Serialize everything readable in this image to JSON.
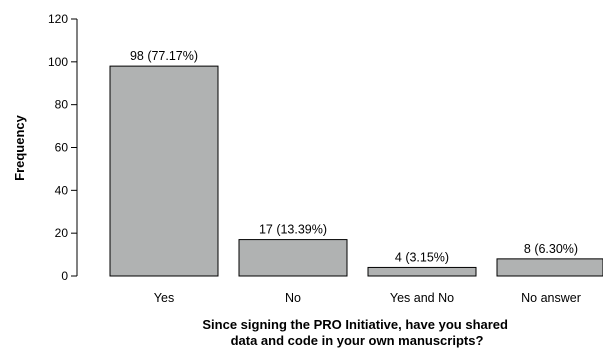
{
  "chart_data": {
    "type": "bar",
    "categories": [
      "Yes",
      "No",
      "Yes and No",
      "No answer"
    ],
    "values": [
      98,
      17,
      4,
      8
    ],
    "data_labels": [
      "98 (77.17%)",
      "17 (13.39%)",
      "4 (3.15%)",
      "8 (6.30%)"
    ],
    "title": "",
    "xlabel_lines": [
      "Since signing the PRO Initiative, have you shared",
      "data and code in your own manuscripts?"
    ],
    "ylabel": "Frequency",
    "ylim": [
      0,
      120
    ],
    "yticks": [
      0,
      20,
      40,
      60,
      80,
      100,
      120
    ],
    "grid": false,
    "bar_color": "#b0b2b2"
  }
}
